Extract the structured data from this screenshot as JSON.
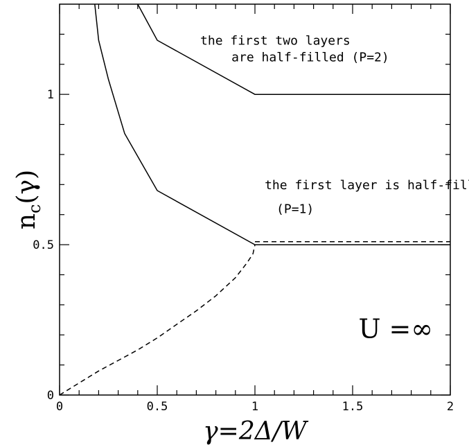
{
  "chart_data": {
    "type": "line",
    "xlabel": "γ=2Δ/W",
    "ylabel": "n_c(γ)",
    "xlim": [
      0,
      2
    ],
    "ylim": [
      0,
      1.3
    ],
    "grid": false,
    "x_ticks": [
      {
        "value": 0,
        "label": "0"
      },
      {
        "value": 0.5,
        "label": "0.5"
      },
      {
        "value": 1,
        "label": "1"
      },
      {
        "value": 1.5,
        "label": "1.5"
      },
      {
        "value": 2,
        "label": "2"
      }
    ],
    "y_ticks": [
      {
        "value": 0,
        "label": "0"
      },
      {
        "value": 0.5,
        "label": "0.5"
      },
      {
        "value": 1,
        "label": "1"
      }
    ],
    "series": [
      {
        "style": "solid",
        "points": [
          [
            0.4,
            1.3
          ],
          [
            0.5,
            1.18
          ],
          [
            1.0,
            1.0
          ],
          [
            2.0,
            1.0
          ]
        ]
      },
      {
        "style": "solid",
        "points": [
          [
            0.18,
            1.3
          ],
          [
            0.2,
            1.18
          ],
          [
            0.25,
            1.05
          ],
          [
            0.333,
            0.87
          ],
          [
            0.5,
            0.68
          ],
          [
            1.0,
            0.5
          ],
          [
            2.0,
            0.5
          ]
        ]
      },
      {
        "style": "dashed",
        "points": [
          [
            0.0,
            0.0
          ],
          [
            0.1,
            0.04
          ],
          [
            0.2,
            0.08
          ],
          [
            0.3,
            0.115
          ],
          [
            0.4,
            0.15
          ],
          [
            0.5,
            0.19
          ],
          [
            0.6,
            0.235
          ],
          [
            0.7,
            0.28
          ],
          [
            0.8,
            0.33
          ],
          [
            0.9,
            0.39
          ],
          [
            0.96,
            0.44
          ],
          [
            0.99,
            0.47
          ],
          [
            1.0,
            0.5
          ]
        ]
      },
      {
        "style": "dashed",
        "points": [
          [
            1.0,
            0.51
          ],
          [
            2.0,
            0.51
          ]
        ]
      }
    ],
    "annotations": [
      {
        "text": "the first two layers",
        "x": 0.72,
        "y": 1.165
      },
      {
        "text": "are half-filled (P=2)",
        "x": 0.88,
        "y": 1.11
      },
      {
        "text": "the first layer is half-filled",
        "x": 1.05,
        "y": 0.685
      },
      {
        "text": "(P=1)",
        "x": 1.11,
        "y": 0.605
      }
    ],
    "big_annotation": {
      "text": "U  =∞",
      "x": 1.53,
      "y": 0.19
    }
  }
}
